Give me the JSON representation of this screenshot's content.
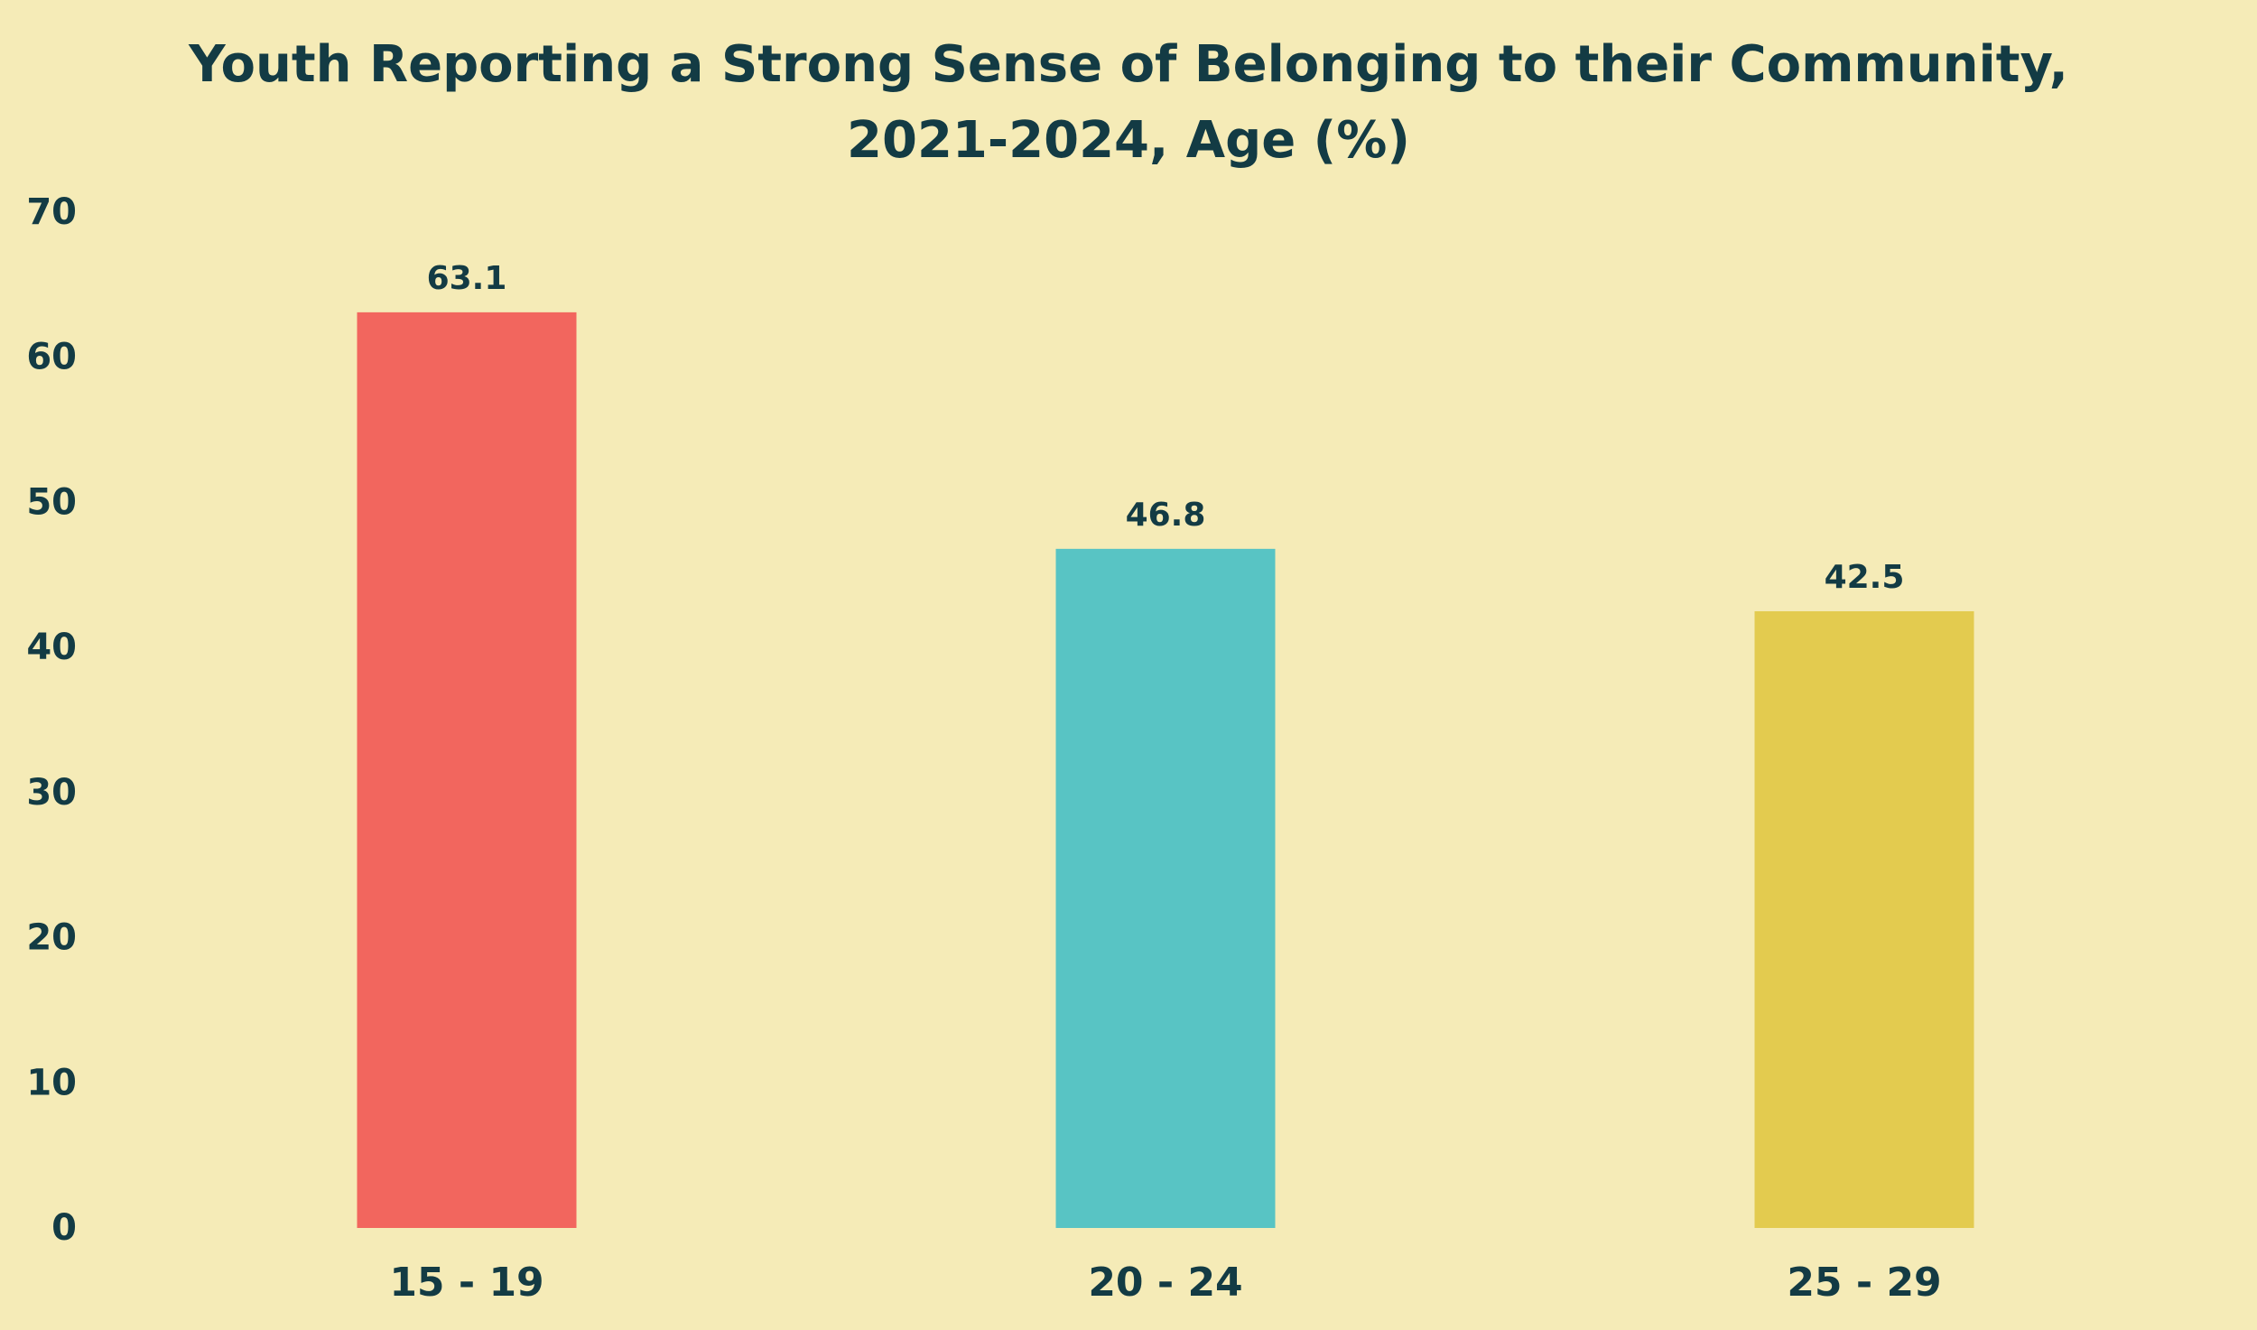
{
  "chart_data": {
    "type": "bar",
    "title_line1": "Youth Reporting a Strong Sense of Belonging to their Community,",
    "title_line2": "2021-2024, Age (%)",
    "xlabel": "",
    "ylabel": "",
    "categories": [
      "15 - 19",
      "20 - 24",
      "25 - 29"
    ],
    "values": [
      63.1,
      46.8,
      42.5
    ],
    "value_labels": [
      "63.1",
      "46.8",
      "42.5"
    ],
    "colors": [
      "#F2665E",
      "#58C4C4",
      "#E3CB4F"
    ],
    "ylim": [
      0,
      70
    ],
    "yticks": [
      0,
      10,
      20,
      30,
      40,
      50,
      60,
      70
    ],
    "ytick_labels": [
      "0",
      "10",
      "20",
      "30",
      "40",
      "50",
      "60",
      "70"
    ],
    "grid": false,
    "legend": "none"
  },
  "colors": {
    "background": "#F5EBB7",
    "text": "#133B44"
  }
}
